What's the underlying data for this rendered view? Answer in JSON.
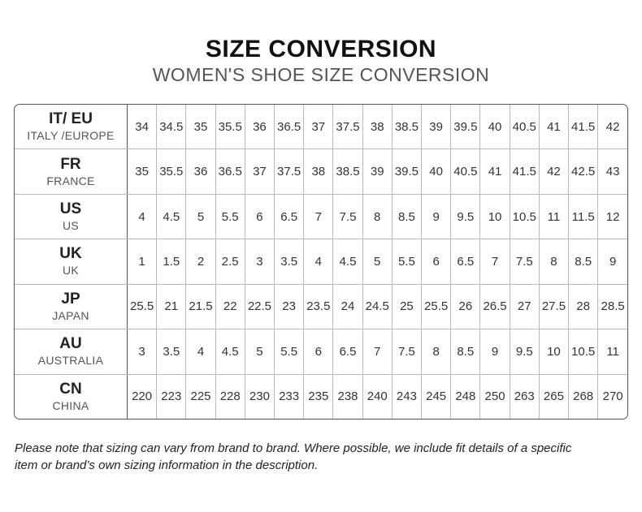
{
  "header": {
    "title": "SIZE CONVERSION",
    "subtitle": "WOMEN'S SHOE SIZE CONVERSION"
  },
  "table": {
    "rows": [
      {
        "code": "IT/ EU",
        "name": "ITALY /EUROPE",
        "values": [
          34,
          34.5,
          35,
          35.5,
          36,
          36.5,
          37,
          37.5,
          38,
          38.5,
          39,
          39.5,
          40,
          40.5,
          41,
          41.5,
          42
        ]
      },
      {
        "code": "FR",
        "name": "FRANCE",
        "values": [
          35,
          35.5,
          36,
          36.5,
          37,
          37.5,
          38,
          38.5,
          39,
          39.5,
          40,
          40.5,
          41,
          41.5,
          42,
          42.5,
          43
        ]
      },
      {
        "code": "US",
        "name": "US",
        "values": [
          4,
          4.5,
          5,
          5.5,
          6,
          6.5,
          7,
          7.5,
          8,
          8.5,
          9,
          9.5,
          10,
          10.5,
          11,
          11.5,
          12
        ]
      },
      {
        "code": "UK",
        "name": "UK",
        "values": [
          1,
          1.5,
          2,
          2.5,
          3,
          3.5,
          4,
          4.5,
          5,
          5.5,
          6,
          6.5,
          7,
          7.5,
          8,
          8.5,
          9
        ]
      },
      {
        "code": "JP",
        "name": "JAPAN",
        "values": [
          25.5,
          21,
          21.5,
          22,
          22.5,
          23,
          23.5,
          24,
          24.5,
          25,
          25.5,
          26,
          26.5,
          27,
          27.5,
          28,
          28.5
        ]
      },
      {
        "code": "AU",
        "name": "AUSTRALIA",
        "values": [
          3,
          3.5,
          4,
          4.5,
          5,
          5.5,
          6,
          6.5,
          7,
          7.5,
          8,
          8.5,
          9,
          9.5,
          10,
          10.5,
          11
        ]
      },
      {
        "code": "CN",
        "name": "CHINA",
        "values": [
          220,
          223,
          225,
          228,
          230,
          233,
          235,
          238,
          240,
          243,
          245,
          248,
          250,
          263,
          265,
          268,
          270
        ]
      }
    ]
  },
  "note": {
    "lines": [
      "Please note that sizing can vary from brand to brand. Where possible, we include fit details of a specific",
      "item or brand’s own sizing information in the description."
    ]
  }
}
